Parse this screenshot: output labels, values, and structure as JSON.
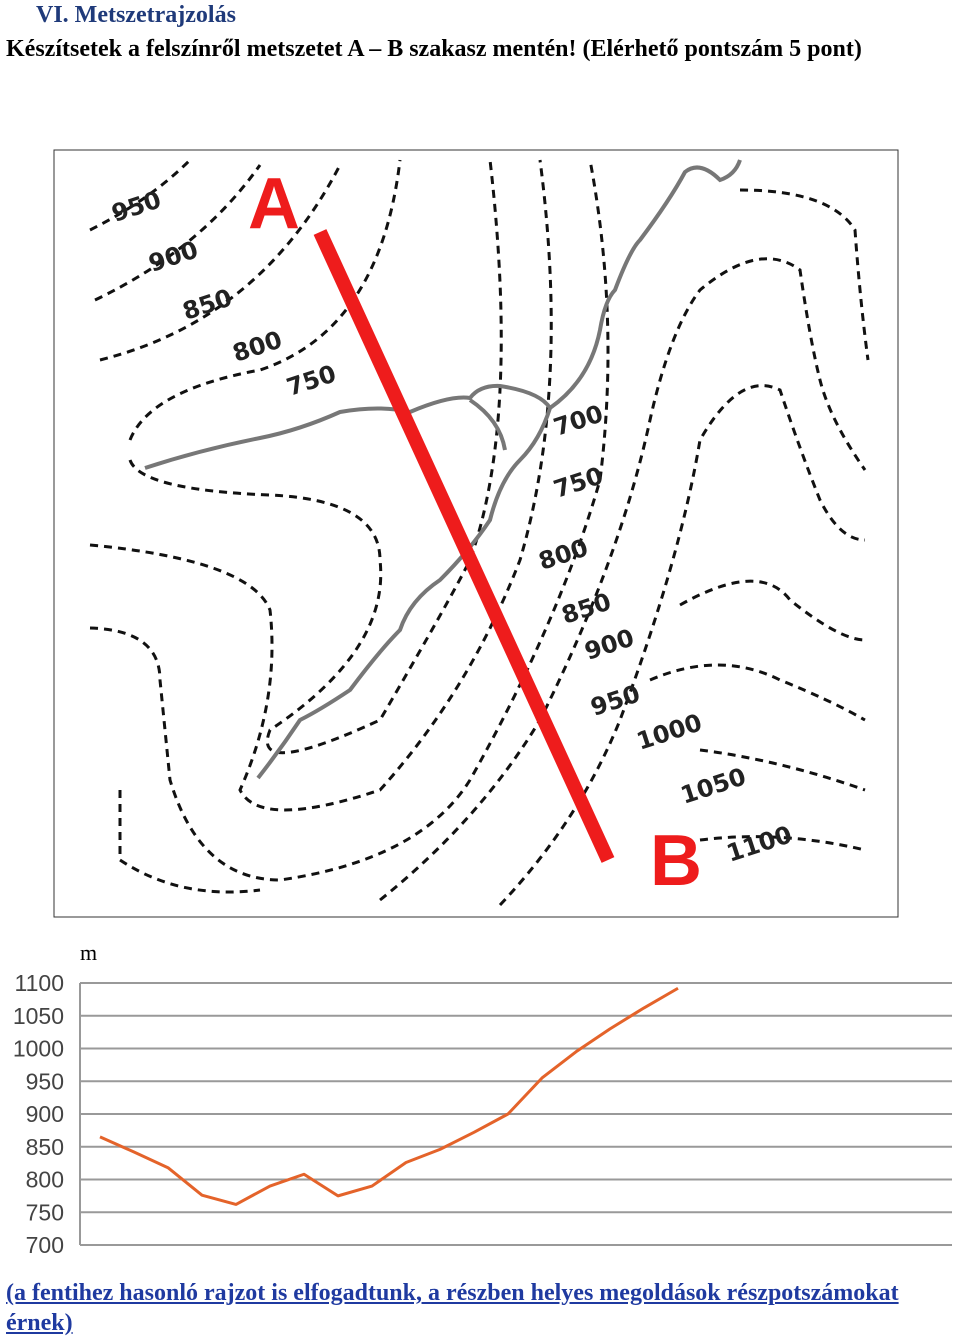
{
  "title": "VI. Metszetrajzolás",
  "task": "Készítsetek a felszínről metszetet A – B szakasz mentén! (Elérhető pontszám 5 pont)",
  "map": {
    "point_a": "A",
    "point_b": "B",
    "contour_labels": [
      "950",
      "900",
      "850",
      "800",
      "750",
      "700",
      "750",
      "800",
      "850",
      "900",
      "950",
      "1000",
      "1050",
      "1100"
    ]
  },
  "chart_data": {
    "type": "line",
    "y_label": "m",
    "categories": [
      null,
      null,
      null,
      null,
      null,
      null,
      null,
      null,
      null,
      null,
      null,
      null,
      null,
      null,
      null,
      null,
      null,
      null
    ],
    "values": [
      865,
      842,
      818,
      776,
      762,
      790,
      808,
      775,
      790,
      826,
      846,
      872,
      900,
      955,
      995,
      1030,
      1062,
      1092
    ],
    "color": "#e4632a",
    "ylim": [
      700,
      1100
    ],
    "yticks": [
      700,
      750,
      800,
      850,
      900,
      950,
      1000,
      1050,
      1100
    ],
    "grid": true
  },
  "note": "(a fentihez hasonló rajzot is elfogadtunk, a részben helyes megoldások részpotszámokat érnek)"
}
